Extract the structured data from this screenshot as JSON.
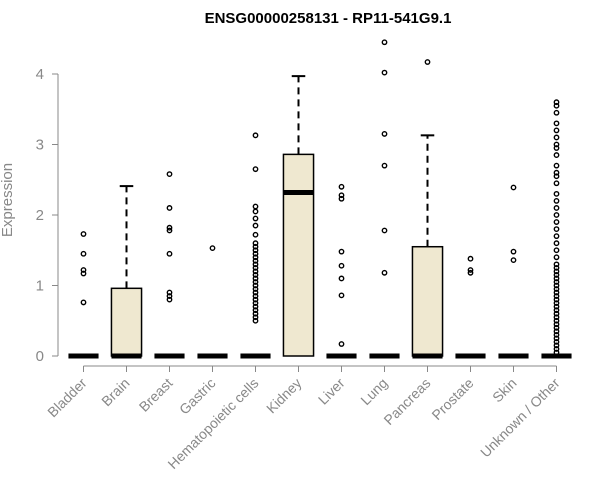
{
  "colors": {
    "box_fill": "#EFE8D0",
    "box_stroke": "#000000",
    "axis": "#888888",
    "title": "#000000",
    "label": "#888888"
  },
  "chart_data": {
    "type": "box",
    "title": "ENSG00000258131 - RP11-541G9.1",
    "xlabel": "",
    "ylabel": "Expression",
    "ylim": [
      0,
      4.5
    ],
    "yticks": [
      "0",
      "1",
      "2",
      "3",
      "4"
    ],
    "yticks_values": [
      0,
      1,
      2,
      3,
      4
    ],
    "categories": [
      "Bladder",
      "Brain",
      "Breast",
      "Gastric",
      "Hematopoietic cells",
      "Kidney",
      "Liver",
      "Lung",
      "Pancreas",
      "Prostate",
      "Skin",
      "Unknown / Other"
    ],
    "boxes": [
      {
        "category": "Bladder",
        "q1": 0,
        "median": 0,
        "q3": 0,
        "whisker_low": 0,
        "whisker_high": 0,
        "outliers": [
          0.76,
          1.17,
          1.22,
          1.45,
          1.73
        ]
      },
      {
        "category": "Brain",
        "q1": 0,
        "median": 0,
        "q3": 0.96,
        "whisker_low": 0,
        "whisker_high": 2.41,
        "outliers": []
      },
      {
        "category": "Breast",
        "q1": 0,
        "median": 0,
        "q3": 0,
        "whisker_low": 0,
        "whisker_high": 0,
        "outliers": [
          0.8,
          0.85,
          0.9,
          1.45,
          1.78,
          1.82,
          2.1,
          2.58
        ]
      },
      {
        "category": "Gastric",
        "q1": 0,
        "median": 0,
        "q3": 0,
        "whisker_low": 0,
        "whisker_high": 0,
        "outliers": [
          1.53
        ]
      },
      {
        "category": "Hematopoietic cells",
        "q1": 0,
        "median": 0,
        "q3": 0,
        "whisker_low": 0,
        "whisker_high": 0,
        "outliers": [
          0.5,
          0.55,
          0.6,
          0.65,
          0.7,
          0.75,
          0.8,
          0.85,
          0.9,
          0.95,
          1.0,
          1.05,
          1.1,
          1.15,
          1.2,
          1.25,
          1.3,
          1.35,
          1.4,
          1.45,
          1.5,
          1.55,
          1.6,
          1.72,
          1.85,
          1.95,
          2.05,
          2.12,
          2.65,
          3.13
        ]
      },
      {
        "category": "Kidney",
        "q1": 0,
        "median": 2.32,
        "q3": 2.86,
        "whisker_low": 0,
        "whisker_high": 3.97,
        "outliers": []
      },
      {
        "category": "Liver",
        "q1": 0,
        "median": 0,
        "q3": 0,
        "whisker_low": 0,
        "whisker_high": 0,
        "outliers": [
          0.17,
          0.86,
          1.1,
          1.28,
          1.48,
          2.23,
          2.28,
          2.4
        ]
      },
      {
        "category": "Lung",
        "q1": 0,
        "median": 0,
        "q3": 0,
        "whisker_low": 0,
        "whisker_high": 0,
        "outliers": [
          1.18,
          1.78,
          2.7,
          3.15,
          4.02,
          4.45
        ]
      },
      {
        "category": "Pancreas",
        "q1": 0,
        "median": 0,
        "q3": 1.55,
        "whisker_low": 0,
        "whisker_high": 3.13,
        "outliers": [
          4.17
        ]
      },
      {
        "category": "Prostate",
        "q1": 0,
        "median": 0,
        "q3": 0,
        "whisker_low": 0,
        "whisker_high": 0,
        "outliers": [
          1.18,
          1.22,
          1.38
        ]
      },
      {
        "category": "Skin",
        "q1": 0,
        "median": 0,
        "q3": 0,
        "whisker_low": 0,
        "whisker_high": 0,
        "outliers": [
          1.36,
          1.48,
          2.39
        ]
      },
      {
        "category": "Unknown / Other",
        "q1": 0,
        "median": 0,
        "q3": 0,
        "whisker_low": 0,
        "whisker_high": 0,
        "outliers": [
          0.05,
          0.1,
          0.15,
          0.2,
          0.25,
          0.3,
          0.35,
          0.4,
          0.45,
          0.5,
          0.55,
          0.6,
          0.65,
          0.7,
          0.75,
          0.8,
          0.85,
          0.9,
          0.95,
          1.0,
          1.05,
          1.1,
          1.15,
          1.2,
          1.25,
          1.3,
          1.4,
          1.5,
          1.6,
          1.7,
          1.8,
          1.9,
          2.0,
          2.1,
          2.2,
          2.3,
          2.45,
          2.55,
          2.6,
          2.7,
          2.85,
          2.95,
          3.0,
          3.1,
          3.2,
          3.3,
          3.45,
          3.55,
          3.6
        ]
      }
    ]
  }
}
